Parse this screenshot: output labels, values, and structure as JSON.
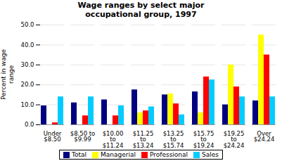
{
  "chart_data": {
    "type": "bar",
    "title": "Wage ranges by select major\noccupational group, 1997",
    "ylabel": "Percent in wage\nrange",
    "categories": [
      "Under\n$8.50",
      "$8.50 to\n$9.99",
      "$10.00\nto\n$11.24",
      "$11.25\nto\n$13.24",
      "$13.25\nto\n$15.74",
      "$15.75\nto\n$19.24",
      "$19.25\nto\n$24.24",
      "Over\n$24.24"
    ],
    "series": [
      {
        "name": "Total",
        "color": "#000080",
        "values": [
          9.5,
          11.0,
          12.5,
          17.5,
          15.0,
          16.5,
          10.0,
          12.0
        ]
      },
      {
        "name": "Managerial",
        "color": "#FFFF00",
        "values": [
          0.0,
          0.0,
          0.0,
          6.0,
          15.5,
          6.0,
          30.0,
          45.0
        ]
      },
      {
        "name": "Professional",
        "color": "#FF0000",
        "values": [
          1.0,
          4.5,
          4.5,
          7.0,
          10.5,
          24.0,
          19.0,
          35.0
        ]
      },
      {
        "name": "Sales",
        "color": "#00CCFF",
        "values": [
          14.0,
          14.0,
          9.5,
          9.0,
          5.0,
          22.5,
          14.0,
          14.0
        ]
      }
    ],
    "ylim": [
      0,
      50
    ],
    "yticks": [
      {
        "value": 0,
        "label": "0.0"
      },
      {
        "value": 10,
        "label": "10.0"
      },
      {
        "value": 20,
        "label": "20.0"
      },
      {
        "value": 30,
        "label": "30.0"
      },
      {
        "value": 40,
        "label": "40.0"
      },
      {
        "value": 50,
        "label": "50.0"
      }
    ],
    "grid": true,
    "legend": "bottom"
  }
}
